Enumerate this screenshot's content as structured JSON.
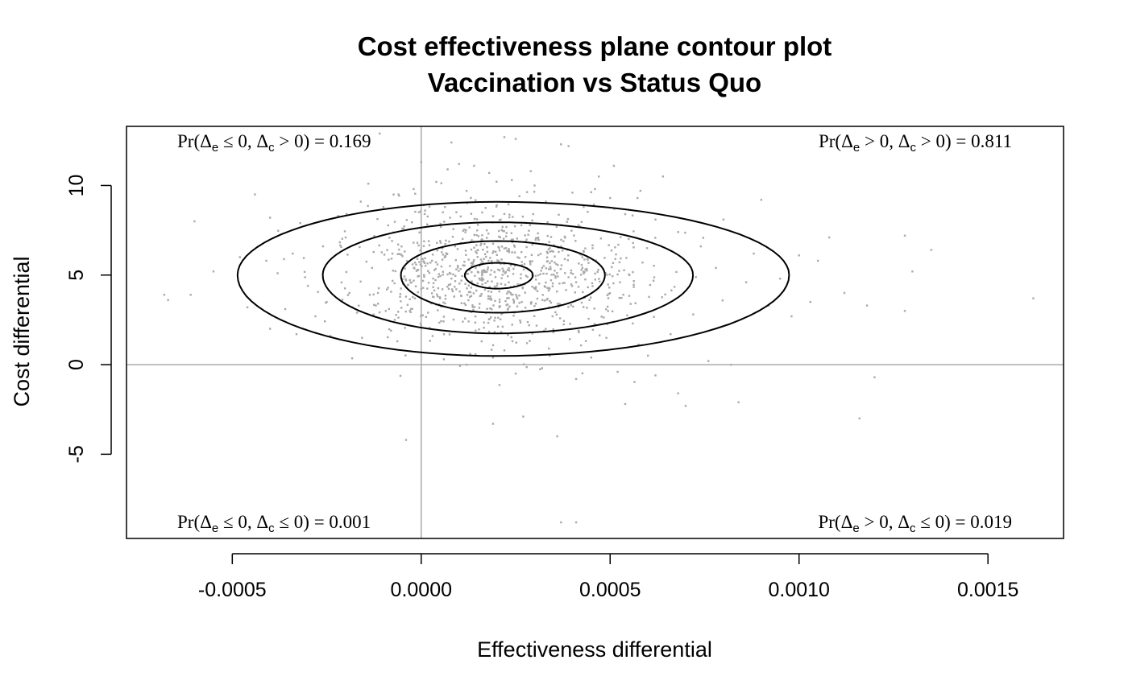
{
  "chart_data": {
    "type": "scatter",
    "title": "Cost effectiveness plane contour plot",
    "subtitle": "Vaccination vs Status Quo",
    "xlabel": "Effectiveness differential",
    "ylabel": "Cost differential",
    "xlim": [
      -0.00078,
      0.0017
    ],
    "ylim": [
      -9.7,
      13.3
    ],
    "x_ticks": [
      -0.0005,
      0.0,
      0.0005,
      0.001,
      0.0015
    ],
    "x_tick_labels": [
      "-0.0005",
      "0.0000",
      "0.0005",
      "0.0010",
      "0.0015"
    ],
    "y_ticks": [
      -5,
      0,
      5,
      10
    ],
    "y_tick_labels": [
      "-5",
      "0",
      "5",
      "10"
    ],
    "reference_lines": {
      "x": 0,
      "y": 0,
      "color": "#aaaaaa"
    },
    "point_color": "#a9a9a9",
    "contour_color": "#000000",
    "contour_center": [
      0.0002,
      5.0
    ],
    "contours": [
      {
        "semi_axis_x": 9e-05,
        "semi_axis_y": 0.72
      },
      {
        "semi_axis_x": 0.00027,
        "semi_axis_y": 2.0
      },
      {
        "semi_axis_x": 0.00049,
        "semi_axis_y": 3.1
      },
      {
        "semi_axis_x": 0.00073,
        "semi_axis_y": 4.3
      }
    ],
    "quadrant_probabilities": [
      {
        "position": "top-left",
        "e_rel": "≤",
        "c_rel": ">",
        "value": "0.169"
      },
      {
        "position": "top-right",
        "e_rel": ">",
        "c_rel": ">",
        "value": "0.811"
      },
      {
        "position": "bottom-left",
        "e_rel": "≤",
        "c_rel": "≤",
        "value": "0.001"
      },
      {
        "position": "bottom-right",
        "e_rel": ">",
        "c_rel": "≤",
        "value": "0.019"
      }
    ],
    "points": [
      [
        -0.00068,
        3.9
      ],
      [
        -0.00067,
        3.6
      ],
      [
        -0.0006,
        8.0
      ],
      [
        -0.00061,
        3.9
      ],
      [
        -0.00055,
        5.2
      ],
      [
        -0.00048,
        6.0
      ],
      [
        -0.00046,
        3.2
      ],
      [
        -0.00044,
        9.5
      ],
      [
        -0.00041,
        5.8
      ],
      [
        -0.0004,
        8.2
      ],
      [
        -0.0004,
        2.0
      ],
      [
        -0.00038,
        5.1
      ],
      [
        -0.00036,
        3.1
      ],
      [
        -0.00034,
        6.2
      ],
      [
        -0.00033,
        1.7
      ],
      [
        -0.00032,
        7.9
      ],
      [
        -0.0003,
        4.4
      ],
      [
        -0.00028,
        2.7
      ],
      [
        -0.00026,
        6.6
      ],
      [
        -0.00025,
        3.5
      ],
      [
        -0.00024,
        1.6
      ],
      [
        -0.00022,
        8.3
      ],
      [
        -0.0002,
        7.1
      ],
      [
        -0.00019,
        4.0
      ],
      [
        -0.00017,
        2.9
      ],
      [
        -0.00016,
        9.1
      ],
      [
        -0.00014,
        10.1
      ],
      [
        -0.00013,
        5.4
      ],
      [
        -0.00012,
        3.3
      ],
      [
        -0.0001,
        8.8
      ],
      [
        -9e-05,
        6.4
      ],
      [
        -8e-05,
        1.9
      ],
      [
        -7e-05,
        2.5
      ],
      [
        -6e-05,
        9.5
      ],
      [
        -5e-05,
        7.6
      ],
      [
        -4e-05,
        4.7
      ],
      [
        -3e-05,
        3.0
      ],
      [
        -2e-05,
        9.8
      ],
      [
        -1e-05,
        5.9
      ],
      [
        0.0,
        2.2
      ],
      [
        1e-05,
        8.6
      ],
      [
        2e-05,
        6.9
      ],
      [
        3e-05,
        1.6
      ],
      [
        4e-05,
        10.2
      ],
      [
        5e-05,
        3.7
      ],
      [
        6e-05,
        0.3
      ],
      [
        7e-05,
        10.9
      ],
      [
        8e-05,
        4.8
      ],
      [
        0.0001,
        11.2
      ],
      [
        0.00011,
        2.4
      ],
      [
        0.00012,
        9.7
      ],
      [
        0.00013,
        0.6
      ],
      [
        0.00014,
        11.1
      ],
      [
        0.00015,
        7.8
      ],
      [
        0.00016,
        1.3
      ],
      [
        0.00018,
        10.7
      ],
      [
        0.0002,
        8.9
      ],
      [
        0.00022,
        0.8
      ],
      [
        0.00024,
        10.3
      ],
      [
        0.00025,
        -0.5
      ],
      [
        0.00026,
        9.4
      ],
      [
        0.00028,
        1.2
      ],
      [
        0.0003,
        10.0
      ],
      [
        0.00032,
        -0.2
      ],
      [
        0.00033,
        9.1
      ],
      [
        0.00035,
        1.8
      ],
      [
        0.00037,
        12.3
      ],
      [
        0.00039,
        12.2
      ],
      [
        0.0004,
        9.6
      ],
      [
        0.00041,
        -0.8
      ],
      [
        0.00043,
        8.8
      ],
      [
        0.00045,
        0.4
      ],
      [
        0.00047,
        10.5
      ],
      [
        0.00049,
        1.5
      ],
      [
        0.0005,
        9.3
      ],
      [
        0.00052,
        -0.4
      ],
      [
        0.00054,
        8.4
      ],
      [
        0.00056,
        2.3
      ],
      [
        0.00058,
        9.7
      ],
      [
        0.0006,
        0.5
      ],
      [
        0.00062,
        8.1
      ],
      [
        0.00064,
        10.5
      ],
      [
        0.00066,
        1.7
      ],
      [
        0.00068,
        7.4
      ],
      [
        0.0007,
        -2.3
      ],
      [
        0.00072,
        2.8
      ],
      [
        0.00074,
        6.6
      ],
      [
        0.00076,
        0.2
      ],
      [
        0.00078,
        5.4
      ],
      [
        0.0008,
        8.1
      ],
      [
        0.00082,
        0.0
      ],
      [
        0.00084,
        -2.1
      ],
      [
        0.00086,
        4.6
      ],
      [
        0.00088,
        6.2
      ],
      [
        0.0009,
        9.2
      ],
      [
        0.00092,
        3.3
      ],
      [
        0.00095,
        4.8
      ],
      [
        0.00098,
        2.7
      ],
      [
        0.001,
        6.1
      ],
      [
        0.00103,
        3.5
      ],
      [
        0.00105,
        5.8
      ],
      [
        0.00108,
        7.1
      ],
      [
        0.00112,
        4.0
      ],
      [
        0.00116,
        -3.0
      ],
      [
        0.00118,
        3.3
      ],
      [
        0.0012,
        -0.7
      ],
      [
        0.00128,
        7.2
      ],
      [
        0.00128,
        3.0
      ],
      [
        0.0013,
        5.2
      ],
      [
        0.00135,
        6.4
      ],
      [
        0.00162,
        3.7
      ],
      [
        0.00037,
        -8.8
      ],
      [
        0.00041,
        -8.8
      ],
      [
        -4e-05,
        -4.2
      ],
      [
        0.00036,
        -4.0
      ],
      [
        0.00019,
        -3.3
      ],
      [
        0.00027,
        -2.9
      ],
      [
        0.00054,
        -2.2
      ],
      [
        0.00068,
        -1.6
      ],
      [
        0.00062,
        -0.6
      ],
      [
        0.00012,
        0.0
      ],
      [
        0.00025,
        12.6
      ],
      [
        0.0,
        11.3
      ],
      [
        -0.00011,
        12.9
      ],
      [
        8e-05,
        12.4
      ],
      [
        0.00022,
        12.7
      ],
      [
        0.00046,
        9.8
      ],
      [
        0.00019,
        0.4
      ],
      [
        0.00029,
        10.8
      ],
      [
        0.00051,
        11.1
      ]
    ],
    "dense_cloud": {
      "center": [
        0.0002,
        5.0
      ],
      "sd": [
        0.00019,
        1.7
      ],
      "count": 900,
      "seed": 1234
    }
  }
}
